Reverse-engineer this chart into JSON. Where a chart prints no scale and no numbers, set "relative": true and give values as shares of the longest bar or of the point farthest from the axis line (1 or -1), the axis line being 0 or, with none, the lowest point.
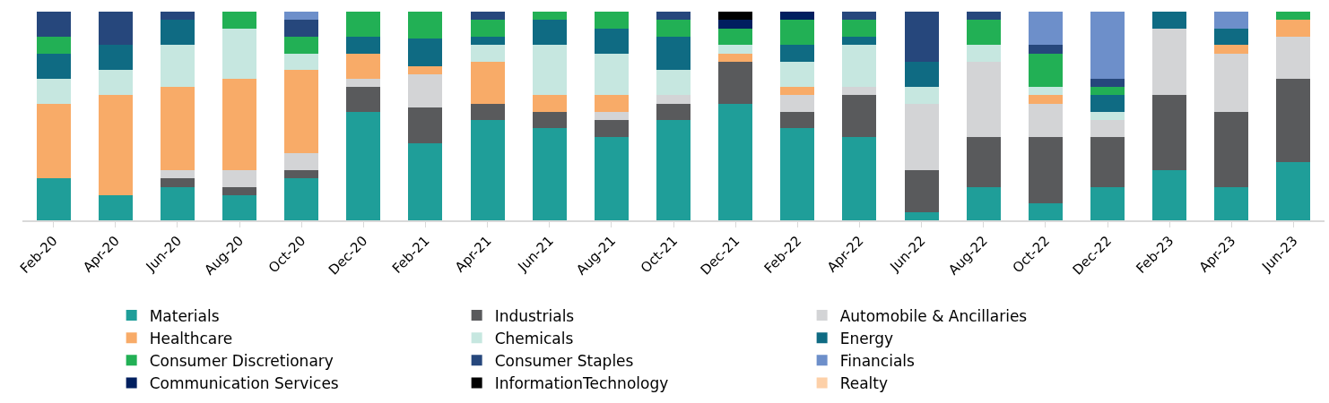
{
  "chart_data": {
    "type": "bar",
    "stacked": true,
    "relative": true,
    "legend": "bottom",
    "categories": [
      "Feb-20",
      "Apr-20",
      "Jun-20",
      "Aug-20",
      "Oct-20",
      "Dec-20",
      "Feb-21",
      "Apr-21",
      "Jun-21",
      "Aug-21",
      "Oct-21",
      "Dec-21",
      "Feb-22",
      "Apr-22",
      "Jun-22",
      "Aug-22",
      "Oct-22",
      "Dec-22",
      "Feb-23",
      "Apr-23",
      "Jun-23"
    ],
    "series": [
      {
        "name": "Materials",
        "color": "#1f9e99",
        "values": [
          0.2,
          0.12,
          0.16,
          0.12,
          0.2,
          0.52,
          0.37,
          0.48,
          0.44,
          0.4,
          0.48,
          0.56,
          0.44,
          0.4,
          0.04,
          0.16,
          0.08,
          0.16,
          0.24,
          0.16,
          0.28
        ]
      },
      {
        "name": "Industrials",
        "color": "#595a5c",
        "values": [
          0,
          0,
          0.04,
          0.04,
          0.04,
          0.12,
          0.17,
          0.08,
          0.08,
          0.08,
          0.08,
          0.2,
          0.08,
          0.2,
          0.2,
          0.24,
          0.32,
          0.24,
          0.36,
          0.36,
          0.4
        ]
      },
      {
        "name": "Automobile & Ancillaries",
        "color": "#d3d4d6",
        "values": [
          0,
          0,
          0.04,
          0.08,
          0.08,
          0.04,
          0.16,
          0,
          0,
          0.04,
          0.04,
          0,
          0.08,
          0.04,
          0.32,
          0.36,
          0.16,
          0.08,
          0.32,
          0.28,
          0.2
        ]
      },
      {
        "name": "Healthcare",
        "color": "#f8ab68",
        "values": [
          0.36,
          0.48,
          0.4,
          0.44,
          0.4,
          0.12,
          0.04,
          0.2,
          0.08,
          0.08,
          0,
          0.04,
          0.04,
          0,
          0,
          0,
          0.04,
          0,
          0,
          0.04,
          0.08
        ]
      },
      {
        "name": "Chemicals",
        "color": "#c6e7e0",
        "values": [
          0.12,
          0.12,
          0.2,
          0.24,
          0.08,
          0,
          0,
          0.08,
          0.24,
          0.2,
          0.12,
          0.04,
          0.12,
          0.2,
          0.08,
          0.08,
          0.04,
          0.04,
          0,
          0,
          0
        ]
      },
      {
        "name": "Energy",
        "color": "#0f6b83",
        "values": [
          0.12,
          0.12,
          0.12,
          0,
          0,
          0.08,
          0.13,
          0.04,
          0.12,
          0.12,
          0.16,
          0,
          0.08,
          0.04,
          0.12,
          0,
          0,
          0.08,
          0.08,
          0.08,
          0
        ]
      },
      {
        "name": "Consumer Discretionary",
        "color": "#22b055",
        "values": [
          0.08,
          0,
          0,
          0.08,
          0.08,
          0.12,
          0.13,
          0.08,
          0.04,
          0.08,
          0.08,
          0.08,
          0.12,
          0.08,
          0,
          0.12,
          0.16,
          0.04,
          0,
          0,
          0.04
        ]
      },
      {
        "name": "Consumer Staples",
        "color": "#26477c",
        "values": [
          0.12,
          0.16,
          0.04,
          0,
          0.08,
          0,
          0,
          0.04,
          0,
          0,
          0.04,
          0,
          0,
          0.04,
          0.24,
          0.04,
          0.04,
          0.04,
          0,
          0,
          0
        ]
      },
      {
        "name": "Financials",
        "color": "#6d8fca",
        "values": [
          0,
          0,
          0,
          0,
          0.04,
          0,
          0,
          0,
          0,
          0,
          0,
          0,
          0,
          0,
          0,
          0,
          0.16,
          0.32,
          0,
          0.08,
          0
        ]
      },
      {
        "name": "Communication Services",
        "color": "#001f5f",
        "values": [
          0,
          0,
          0,
          0,
          0,
          0,
          0,
          0,
          0,
          0,
          0,
          0.04,
          0.04,
          0,
          0,
          0,
          0,
          0,
          0,
          0,
          0
        ]
      },
      {
        "name": "InformationTechnology",
        "color": "#000000",
        "values": [
          0,
          0,
          0,
          0,
          0,
          0,
          0,
          0,
          0,
          0,
          0,
          0.04,
          0,
          0,
          0,
          0,
          0,
          0,
          0,
          0,
          0
        ]
      },
      {
        "name": "Realty",
        "color": "#fdd0a8",
        "values": [
          0,
          0,
          0,
          0,
          0,
          0,
          0,
          0,
          0,
          0,
          0,
          0,
          0,
          0,
          0,
          0,
          0,
          0,
          0,
          0,
          0
        ]
      }
    ]
  }
}
